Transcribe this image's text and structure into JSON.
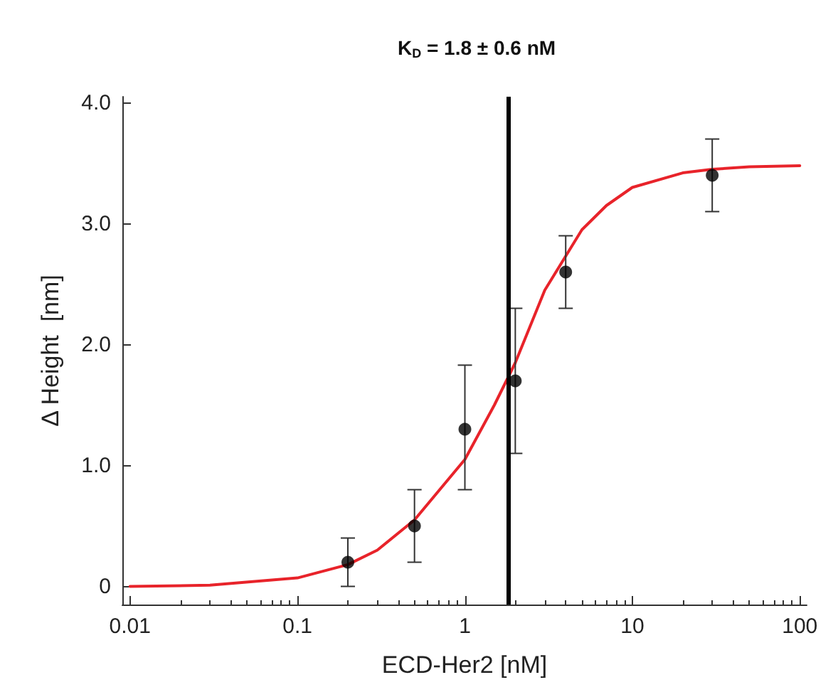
{
  "chart_data": {
    "type": "scatter",
    "title": "K$_{D}$ = 1.8 ± 0.6 nM",
    "xlabel": "ECD-Her2 [nM]",
    "ylabel": "Δ Height  [nm]",
    "log": "x",
    "xlim": [
      0.009,
      110
    ],
    "xticks": [
      0.01,
      0.1,
      1,
      10,
      100
    ],
    "ylim": [
      -0.15,
      4.05
    ],
    "yticks": [
      0,
      {
        "value": 1,
        "label": "1.0"
      },
      {
        "value": 2,
        "label": "2.0"
      },
      {
        "value": 3,
        "label": "3.0"
      },
      {
        "value": 4,
        "label": "4.0"
      }
    ],
    "series": [
      {
        "type": "line",
        "color": "#e8232a",
        "marker": "none",
        "line_style": "solid",
        "x": [
          0.01,
          0.03,
          0.1,
          0.2,
          0.3,
          0.5,
          1,
          1.5,
          2,
          3,
          5,
          7,
          10,
          20,
          30,
          50,
          100
        ],
        "values": [
          0,
          0.01,
          0.07,
          0.18,
          0.3,
          0.55,
          1.05,
          1.5,
          1.85,
          2.45,
          2.95,
          3.15,
          3.3,
          3.42,
          3.45,
          3.47,
          3.48
        ]
      },
      {
        "color": "#000000",
        "marker": "circle",
        "x": [
          0.2,
          0.5,
          1,
          2,
          4,
          30
        ],
        "values": [
          0.2,
          0.5,
          1.3,
          1.7,
          2.6,
          3.4
        ],
        "errors": [
          [
            0,
            0.4
          ],
          [
            0.2,
            0.8
          ],
          [
            0.8,
            1.83
          ],
          [
            1.1,
            2.3
          ],
          [
            2.3,
            2.9
          ],
          [
            3.1,
            3.7
          ]
        ]
      }
    ],
    "ref_lines": [
      {
        "axis": "x",
        "value": 1.8,
        "color": "#000000",
        "line_style": "solid"
      }
    ]
  }
}
